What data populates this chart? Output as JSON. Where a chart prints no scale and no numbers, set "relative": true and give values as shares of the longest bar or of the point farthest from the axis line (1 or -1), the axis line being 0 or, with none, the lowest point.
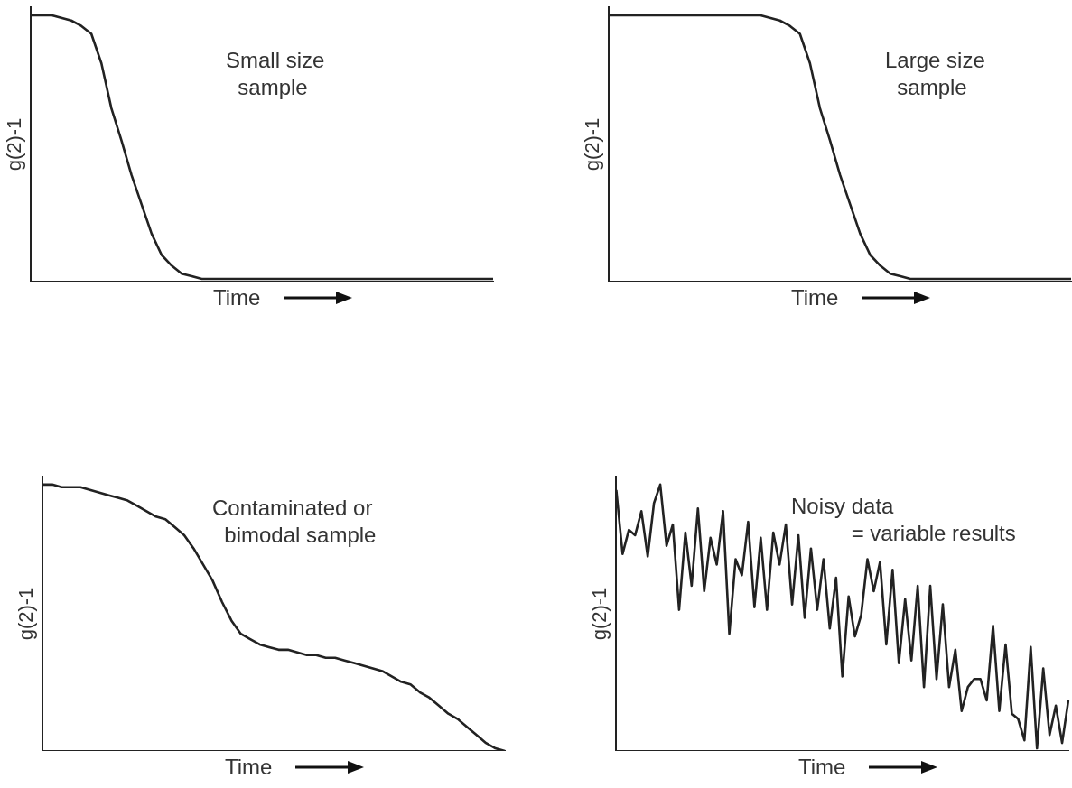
{
  "chart_data": [
    {
      "type": "line",
      "relative": true,
      "ylabel": "g(2)-1",
      "xlabel": "Time",
      "annotations": [
        "Small size\n  sample"
      ],
      "marker": "none",
      "categories": [
        null,
        null,
        null,
        null,
        null,
        null,
        null,
        null,
        null,
        null,
        null,
        null,
        null,
        null,
        null,
        null,
        null,
        null,
        null,
        null,
        null,
        null,
        null,
        null,
        null,
        null,
        null,
        null,
        null,
        null,
        null,
        null,
        null,
        null,
        null,
        null,
        null,
        null,
        null,
        null,
        null,
        null,
        null,
        null,
        null,
        null,
        null
      ],
      "series": [
        {
          "color": "#222222",
          "values": [
            1,
            1,
            1,
            0.99,
            0.98,
            0.96,
            0.93,
            0.82,
            0.65,
            0.53,
            0.4,
            0.29,
            0.18,
            0.1,
            0.06,
            0.03,
            0.02,
            0.01,
            0.01,
            0.01,
            0.01,
            0.01,
            0.01,
            0.01,
            0.01,
            0.01,
            0.01,
            0.01,
            0.01,
            0.01,
            0.01,
            0.01,
            0.01,
            0.01,
            0.01,
            0.01,
            0.01,
            0.01,
            0.01,
            0.01,
            0.01,
            0.01,
            0.01,
            0.01,
            0.01,
            0.01,
            0.01
          ]
        }
      ]
    },
    {
      "type": "line",
      "relative": true,
      "ylabel": "g(2)-1",
      "xlabel": "Time",
      "annotations": [
        "Large size\n  sample"
      ],
      "marker": "none",
      "categories": [
        null,
        null,
        null,
        null,
        null,
        null,
        null,
        null,
        null,
        null,
        null,
        null,
        null,
        null,
        null,
        null,
        null,
        null,
        null,
        null,
        null,
        null,
        null,
        null,
        null,
        null,
        null,
        null,
        null,
        null,
        null,
        null,
        null,
        null,
        null,
        null,
        null,
        null,
        null,
        null,
        null,
        null,
        null,
        null,
        null,
        null,
        null
      ],
      "series": [
        {
          "color": "#222222",
          "values": [
            1,
            1,
            1,
            1,
            1,
            1,
            1,
            1,
            1,
            1,
            1,
            1,
            1,
            1,
            1,
            1,
            0.99,
            0.98,
            0.96,
            0.93,
            0.82,
            0.65,
            0.53,
            0.4,
            0.29,
            0.18,
            0.1,
            0.06,
            0.03,
            0.02,
            0.01,
            0.01,
            0.01,
            0.01,
            0.01,
            0.01,
            0.01,
            0.01,
            0.01,
            0.01,
            0.01,
            0.01,
            0.01,
            0.01,
            0.01,
            0.01,
            0.01
          ]
        }
      ]
    },
    {
      "type": "line",
      "relative": true,
      "ylabel": "g(2)-1",
      "xlabel": "Time",
      "annotations": [
        "Contaminated or\n  bimodal sample"
      ],
      "marker": "none",
      "categories": [
        null,
        null,
        null,
        null,
        null,
        null,
        null,
        null,
        null,
        null,
        null,
        null,
        null,
        null,
        null,
        null,
        null,
        null,
        null,
        null,
        null,
        null,
        null,
        null,
        null,
        null,
        null,
        null,
        null,
        null,
        null,
        null,
        null,
        null,
        null,
        null,
        null,
        null,
        null,
        null,
        null,
        null,
        null,
        null,
        null,
        null,
        null,
        null,
        null,
        null
      ],
      "series": [
        {
          "color": "#222222",
          "values": [
            1,
            1,
            0.99,
            0.99,
            0.99,
            0.98,
            0.97,
            0.96,
            0.95,
            0.94,
            0.92,
            0.9,
            0.88,
            0.87,
            0.84,
            0.81,
            0.76,
            0.7,
            0.64,
            0.56,
            0.49,
            0.44,
            0.42,
            0.4,
            0.39,
            0.38,
            0.38,
            0.37,
            0.36,
            0.36,
            0.35,
            0.35,
            0.34,
            0.33,
            0.32,
            0.31,
            0.3,
            0.28,
            0.26,
            0.25,
            0.22,
            0.2,
            0.17,
            0.14,
            0.12,
            0.09,
            0.06,
            0.03,
            0.01,
            0
          ]
        }
      ]
    },
    {
      "type": "line",
      "relative": true,
      "ylabel": "g(2)-1",
      "xlabel": "Time",
      "annotations": [
        "Noisy data\n          = variable results"
      ],
      "marker": "none",
      "categories": [
        null,
        null,
        null,
        null,
        null,
        null,
        null,
        null,
        null,
        null,
        null,
        null,
        null,
        null,
        null,
        null,
        null,
        null,
        null,
        null,
        null,
        null,
        null,
        null,
        null,
        null,
        null,
        null,
        null,
        null,
        null,
        null,
        null,
        null,
        null,
        null,
        null,
        null,
        null,
        null,
        null,
        null,
        null,
        null,
        null,
        null,
        null,
        null,
        null,
        null,
        null,
        null,
        null,
        null,
        null,
        null,
        null,
        null,
        null,
        null,
        null,
        null,
        null,
        null,
        null,
        null,
        null,
        null,
        null,
        null,
        null,
        null,
        null
      ],
      "series": [
        {
          "color": "#222222",
          "values": [
            0.98,
            0.74,
            0.83,
            0.81,
            0.9,
            0.73,
            0.93,
            1,
            0.77,
            0.85,
            0.53,
            0.82,
            0.62,
            0.91,
            0.6,
            0.8,
            0.7,
            0.9,
            0.44,
            0.72,
            0.66,
            0.86,
            0.54,
            0.8,
            0.53,
            0.82,
            0.7,
            0.85,
            0.55,
            0.81,
            0.5,
            0.76,
            0.53,
            0.72,
            0.46,
            0.65,
            0.28,
            0.58,
            0.43,
            0.51,
            0.72,
            0.6,
            0.71,
            0.4,
            0.68,
            0.33,
            0.57,
            0.34,
            0.62,
            0.24,
            0.62,
            0.27,
            0.55,
            0.24,
            0.38,
            0.15,
            0.24,
            0.27,
            0.27,
            0.19,
            0.47,
            0.15,
            0.4,
            0.14,
            0.12,
            0.04,
            0.39,
            0.01,
            0.31,
            0.06,
            0.17,
            0.03,
            0.19
          ]
        }
      ]
    }
  ]
}
